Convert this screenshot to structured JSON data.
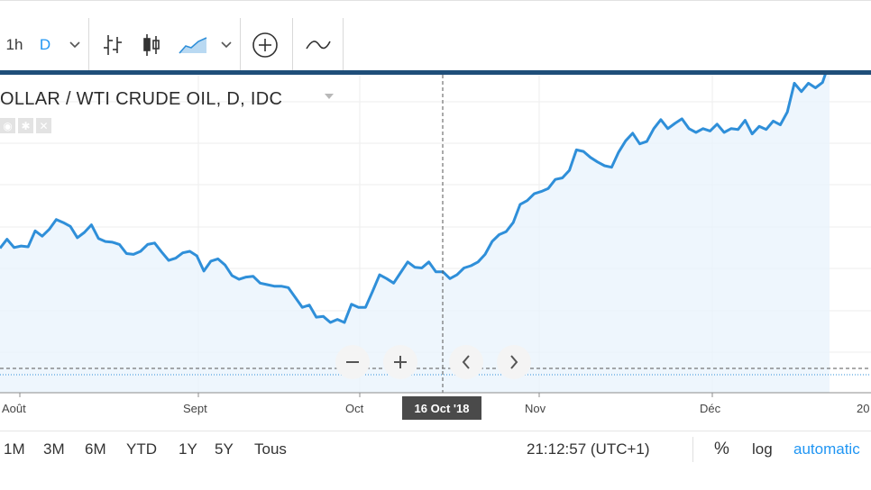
{
  "toolbar": {
    "interval_1h": "1h",
    "interval_d": "D",
    "accent": "#2196f3"
  },
  "chart_title": "OLLAR / WTI CRUDE OIL, D, IDC",
  "x_axis": {
    "labels": [
      "Août",
      "Sept",
      "Oct",
      "Nov",
      "Déc",
      "20"
    ],
    "crosshair": "16 Oct '18"
  },
  "bottom": {
    "ranges": [
      "1M",
      "3M",
      "6M",
      "YTD",
      "1Y",
      "5Y",
      "Tous"
    ],
    "clock": "21:12:57 (UTC+1)",
    "percent": "%",
    "log": "log",
    "auto": "automatic"
  },
  "chart_data": {
    "type": "line",
    "title": "OLLAR / WTI CRUDE OIL, D, IDC",
    "series_color": "#2f8fd9",
    "series": [
      {
        "values": [
          167,
          179,
          168,
          170,
          169,
          190,
          183,
          192,
          205,
          201,
          196,
          181,
          188,
          198,
          180,
          176,
          175,
          172,
          160,
          159,
          163,
          172,
          174,
          162,
          151,
          154,
          161,
          163,
          157,
          137,
          150,
          153,
          145,
          131,
          126,
          129,
          130,
          121,
          119,
          117,
          117,
          115,
          102,
          89,
          92,
          76,
          77,
          69,
          73,
          69,
          93,
          89,
          89,
          110,
          132,
          127,
          121,
          135,
          149,
          142,
          141,
          149,
          136,
          136,
          127,
          132,
          141,
          144,
          149,
          159,
          176,
          185,
          189,
          201,
          225,
          230,
          239,
          242,
          246,
          258,
          260,
          270,
          297,
          295,
          287,
          281,
          276,
          274,
          294,
          309,
          319,
          305,
          308,
          325,
          337,
          325,
          332,
          338,
          325,
          320,
          325,
          322,
          331,
          320,
          325,
          324,
          336,
          318,
          328,
          324,
          335,
          330,
          347,
          385,
          374,
          385,
          379,
          386,
          413
        ]
      }
    ],
    "y_plot_range": [
      0,
      420
    ],
    "x_tick_labels": [
      "Août",
      "Sept",
      "Oct",
      "Nov",
      "Déc",
      "20"
    ],
    "grid": true
  }
}
